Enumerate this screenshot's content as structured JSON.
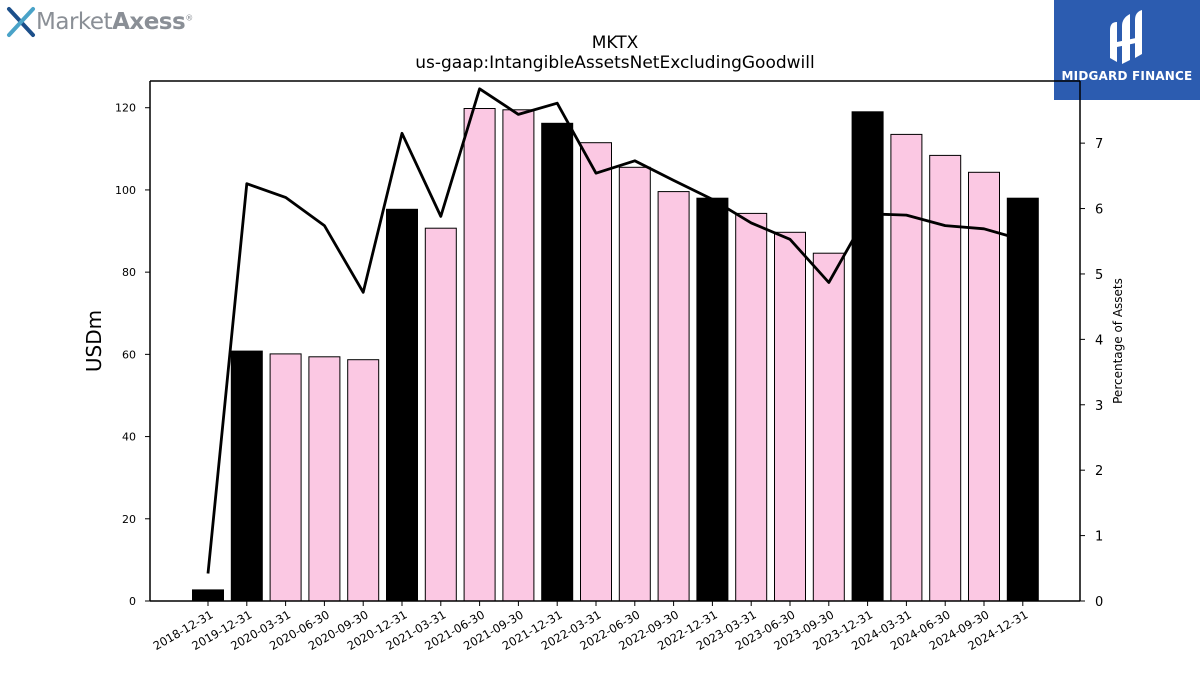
{
  "branding": {
    "left_logo_text_light": "Market",
    "left_logo_text_bold": "Axess",
    "left_logo_reg": "®",
    "right_logo_text": "MIDGARD FINANCE"
  },
  "colors": {
    "annual_bar": "#000000",
    "quarter_bar": "#fbc8e3",
    "line": "#000000",
    "brand_blue": "#2c5cb0"
  },
  "chart_data": {
    "type": "bar",
    "title": "MKTX",
    "subtitle": "us-gaap:IntangibleAssetsNetExcludingGoodwill",
    "ylabel": "USDm",
    "y2label": "Percentage of Assets",
    "ylim": [
      0,
      126.5
    ],
    "y2lim": [
      0,
      7.95
    ],
    "yticks": [
      0,
      20,
      40,
      60,
      80,
      100,
      120
    ],
    "y2ticks": [
      0,
      1,
      2,
      3,
      4,
      5,
      6,
      7
    ],
    "categories": [
      "2018-12-31",
      "2019-12-31",
      "2020-03-31",
      "2020-06-30",
      "2020-09-30",
      "2020-12-31",
      "2021-03-31",
      "2021-06-30",
      "2021-09-30",
      "2021-12-31",
      "2022-03-31",
      "2022-06-30",
      "2022-09-30",
      "2022-12-31",
      "2023-03-31",
      "2023-06-30",
      "2023-09-30",
      "2023-12-31",
      "2024-03-31",
      "2024-06-30",
      "2024-09-30",
      "2024-12-31"
    ],
    "period_type": [
      "annual",
      "annual",
      "quarter",
      "quarter",
      "quarter",
      "annual",
      "quarter",
      "quarter",
      "quarter",
      "annual",
      "quarter",
      "quarter",
      "quarter",
      "annual",
      "quarter",
      "quarter",
      "quarter",
      "annual",
      "quarter",
      "quarter",
      "quarter",
      "annual"
    ],
    "series": [
      {
        "name": "",
        "axis": "left",
        "kind": "bar",
        "values": [
          2.7,
          60.8,
          60.1,
          59.4,
          58.7,
          95.3,
          90.7,
          119.8,
          119.5,
          116.2,
          111.5,
          105.5,
          99.6,
          98.0,
          94.3,
          89.7,
          84.6,
          119.0,
          113.5,
          108.4,
          104.3,
          98.0
        ]
      },
      {
        "name": "",
        "axis": "right",
        "kind": "line",
        "values": [
          0.42,
          6.38,
          6.17,
          5.74,
          4.72,
          7.15,
          5.88,
          7.83,
          7.44,
          7.61,
          6.54,
          6.73,
          6.43,
          6.14,
          5.78,
          5.53,
          4.87,
          5.92,
          5.9,
          5.74,
          5.69,
          5.52
        ]
      }
    ],
    "legend": "none",
    "grid": false
  }
}
